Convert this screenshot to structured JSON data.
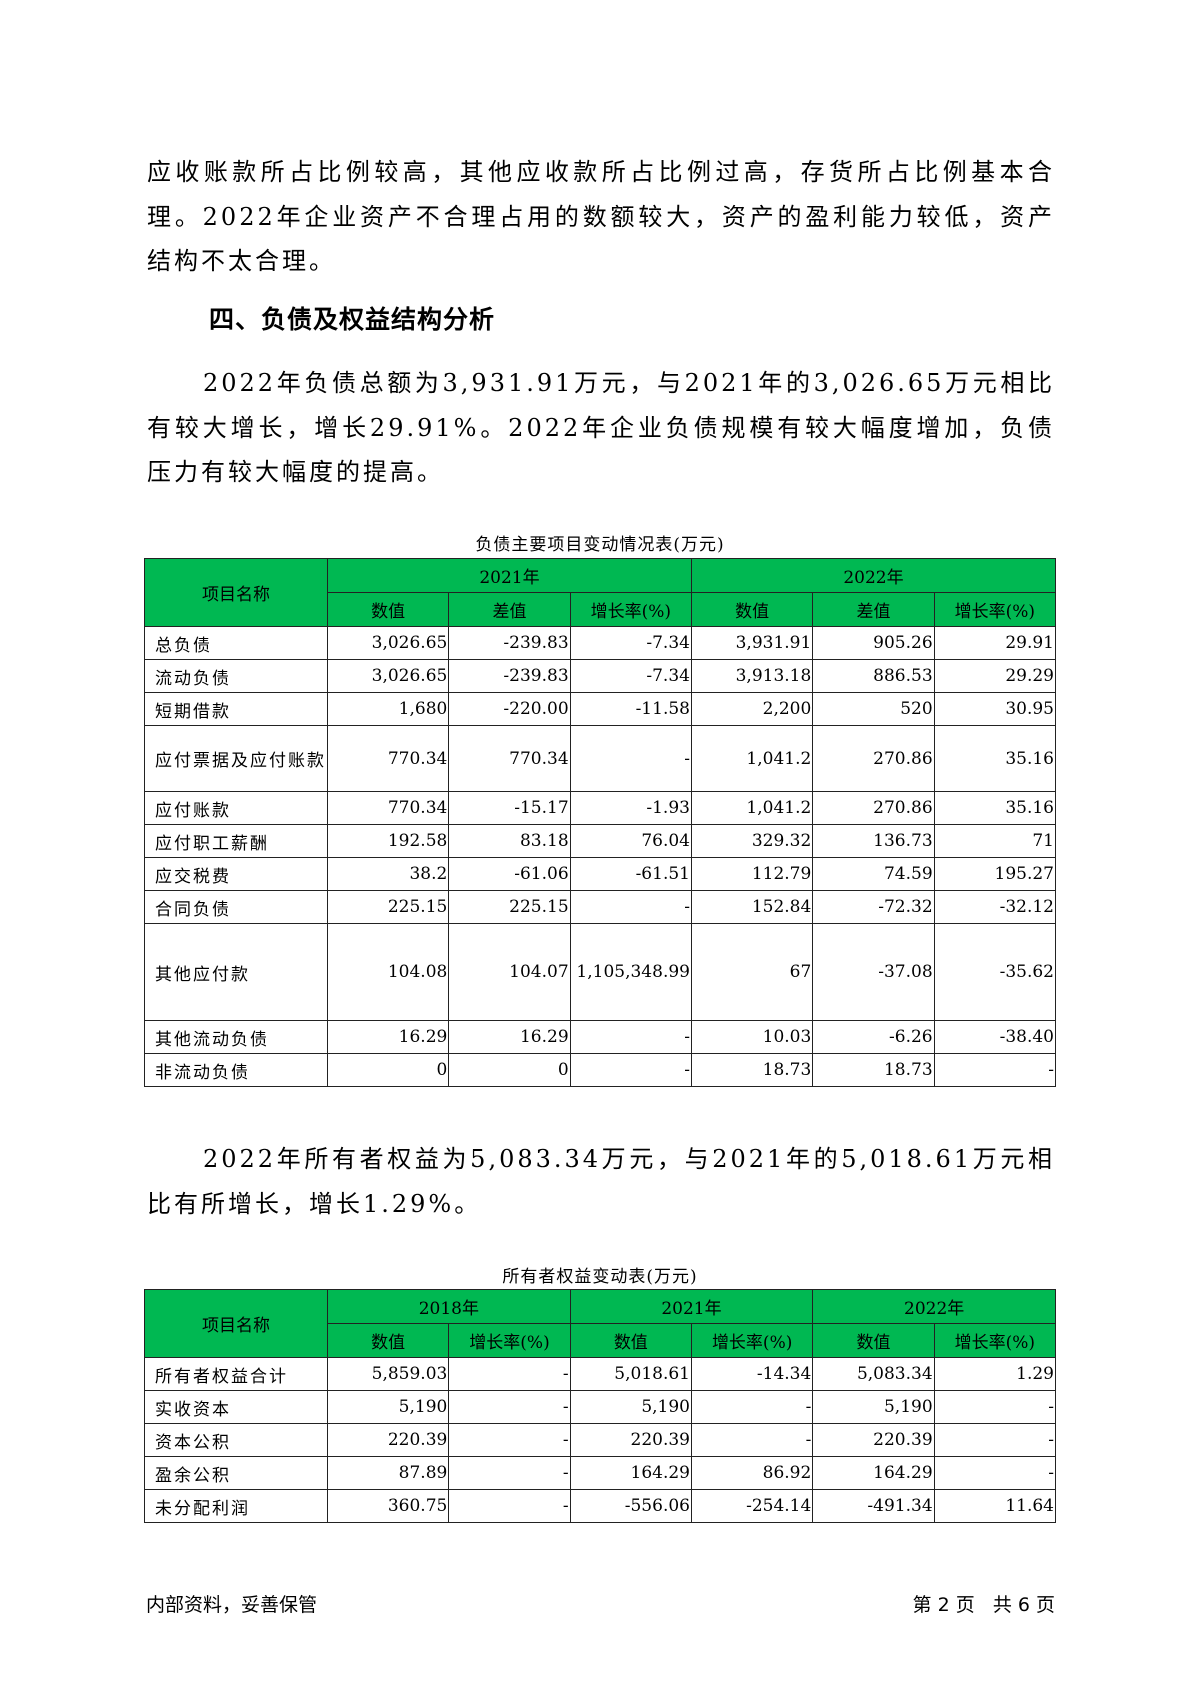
{
  "paragraphs": {
    "p1": "应收账款所占比例较高，其他应收款所占比例过高，存货所占比例基本合理。2022年企业资产不合理占用的数额较大，资产的盈利能力较低，资产结构不太合理。",
    "heading": "四、负债及权益结构分析",
    "p2": "2022年负债总额为3,931.91万元，与2021年的3,026.65万元相比有较大增长，增长29.91%。2022年企业负债规模有较大幅度增加，负债压力有较大幅度的提高。",
    "p3": "2022年所有者权益为5,083.34万元，与2021年的5,018.61万元相比有所增长，增长1.29%。"
  },
  "table1": {
    "caption": "负债主要项目变动情况表(万元)",
    "name_header": "项目名称",
    "years": [
      "2021年",
      "2022年"
    ],
    "sub_headers": [
      "数值",
      "差值",
      "增长率(%)",
      "数值",
      "差值",
      "增长率(%)"
    ],
    "rows": [
      [
        "总负债",
        "3,026.65",
        "-239.83",
        "-7.34",
        "3,931.91",
        "905.26",
        "29.91"
      ],
      [
        "流动负债",
        "3,026.65",
        "-239.83",
        "-7.34",
        "3,913.18",
        "886.53",
        "29.29"
      ],
      [
        "短期借款",
        "1,680",
        "-220.00",
        "-11.58",
        "2,200",
        "520",
        "30.95"
      ],
      [
        "应付票据及应付账款",
        "770.34",
        "770.34",
        "-",
        "1,041.2",
        "270.86",
        "35.16"
      ],
      [
        "应付账款",
        "770.34",
        "-15.17",
        "-1.93",
        "1,041.2",
        "270.86",
        "35.16"
      ],
      [
        "应付职工薪酬",
        "192.58",
        "83.18",
        "76.04",
        "329.32",
        "136.73",
        "71"
      ],
      [
        "应交税费",
        "38.2",
        "-61.06",
        "-61.51",
        "112.79",
        "74.59",
        "195.27"
      ],
      [
        "合同负债",
        "225.15",
        "225.15",
        "-",
        "152.84",
        "-72.32",
        "-32.12"
      ],
      [
        "其他应付款",
        "104.08",
        "104.07",
        "1,105,348.99",
        "67",
        "-37.08",
        "-35.62"
      ],
      [
        "其他流动负债",
        "16.29",
        "16.29",
        "-",
        "10.03",
        "-6.26",
        "-38.40"
      ],
      [
        "非流动负债",
        "0",
        "0",
        "-",
        "18.73",
        "18.73",
        "-"
      ]
    ]
  },
  "table2": {
    "caption": "所有者权益变动表(万元)",
    "name_header": "项目名称",
    "years": [
      "2018年",
      "2021年",
      "2022年"
    ],
    "sub_headers": [
      "数值",
      "增长率(%)",
      "数值",
      "增长率(%)",
      "数值",
      "增长率(%)"
    ],
    "rows": [
      [
        "所有者权益合计",
        "5,859.03",
        "-",
        "5,018.61",
        "-14.34",
        "5,083.34",
        "1.29"
      ],
      [
        "实收资本",
        "5,190",
        "-",
        "5,190",
        "-",
        "5,190",
        "-"
      ],
      [
        "资本公积",
        "220.39",
        "-",
        "220.39",
        "-",
        "220.39",
        "-"
      ],
      [
        "盈余公积",
        "87.89",
        "-",
        "164.29",
        "86.92",
        "164.29",
        "-"
      ],
      [
        "未分配利润",
        "360.75",
        "-",
        "-556.06",
        "-254.14",
        "-491.34",
        "11.64"
      ]
    ]
  },
  "footer": {
    "left": "内部资料，妥善保管",
    "right": "第 2 页   共 6 页"
  },
  "colors": {
    "header_green": "#00b852"
  }
}
